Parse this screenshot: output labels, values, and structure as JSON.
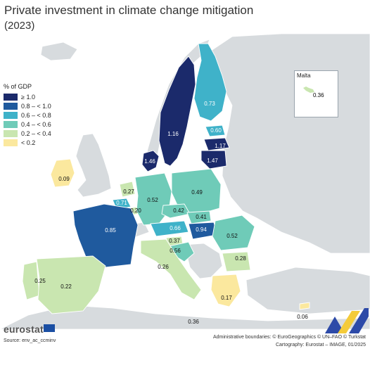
{
  "title": "Private investment in climate change mitigation",
  "subtitle": "(2023)",
  "legend": {
    "title": "% of GDP",
    "classes": [
      {
        "label": "≥ 1.0",
        "color": "#1b2a6b"
      },
      {
        "label": "0.8 – < 1.0",
        "color": "#1f5a9e"
      },
      {
        "label": "0.6 – < 0.8",
        "color": "#3fb2c9"
      },
      {
        "label": "0.4 – < 0.6",
        "color": "#6fcbb8"
      },
      {
        "label": "0.2 – < 0.4",
        "color": "#c9e6b0"
      },
      {
        "label": "< 0.2",
        "color": "#fbe89e"
      }
    ]
  },
  "countries": [
    {
      "name": "Sweden",
      "value": "1.16"
    },
    {
      "name": "Finland",
      "value": "0.73"
    },
    {
      "name": "Estonia",
      "value": "0.60"
    },
    {
      "name": "Latvia",
      "value": "1.17"
    },
    {
      "name": "Lithuania",
      "value": "1.47"
    },
    {
      "name": "Denmark",
      "value": "1.46"
    },
    {
      "name": "Ireland",
      "value": "0.09"
    },
    {
      "name": "Netherlands",
      "value": "0.27"
    },
    {
      "name": "Belgium",
      "value": "0.71"
    },
    {
      "name": "Luxembourg",
      "value": "0.20"
    },
    {
      "name": "Germany",
      "value": "0.52"
    },
    {
      "name": "Poland",
      "value": "0.49"
    },
    {
      "name": "Czechia",
      "value": "0.42"
    },
    {
      "name": "Slovakia",
      "value": "0.41"
    },
    {
      "name": "Austria",
      "value": "0.66"
    },
    {
      "name": "Hungary",
      "value": "0.94"
    },
    {
      "name": "Romania",
      "value": "0.52"
    },
    {
      "name": "France",
      "value": "0.85"
    },
    {
      "name": "Slovenia",
      "value": "0.37"
    },
    {
      "name": "Croatia",
      "value": "0.56"
    },
    {
      "name": "Italy",
      "value": "0.26"
    },
    {
      "name": "Bulgaria",
      "value": "0.28"
    },
    {
      "name": "Portugal",
      "value": "0.25"
    },
    {
      "name": "Spain",
      "value": "0.22"
    },
    {
      "name": "Greece",
      "value": "0.17"
    },
    {
      "name": "Cyprus",
      "value": "0.06"
    },
    {
      "name": "Malta",
      "value": "0.36"
    }
  ],
  "inset": {
    "title": "Malta",
    "value": "0.36"
  },
  "footer": {
    "logo": "eurostat",
    "source": "Source: env_ac_ccminv",
    "credit1": "Administrative boundaries: © EuroGeographics © UN–FAO © Turkstat",
    "credit2": "Cartography: Eurostat – IMAGE, 01/2025"
  }
}
